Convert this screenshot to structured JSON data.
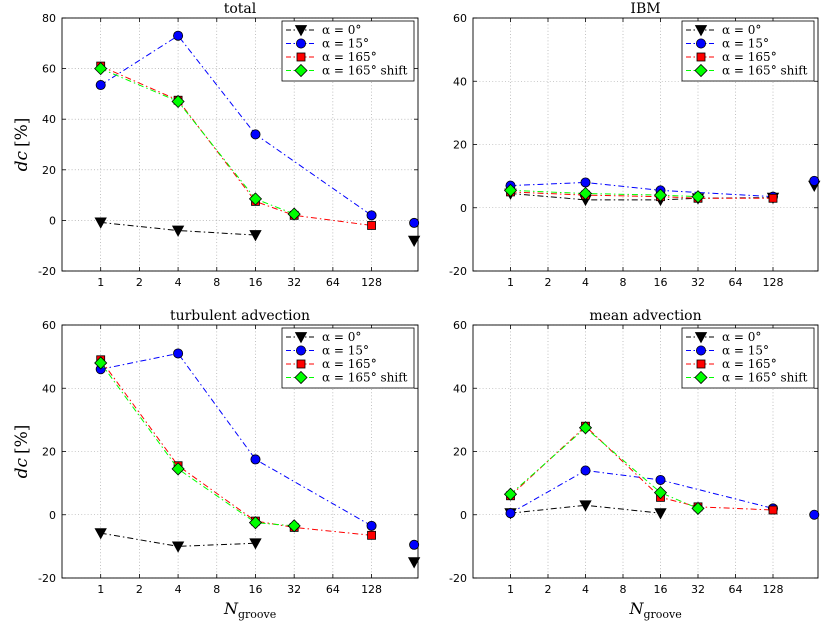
{
  "chart_data": [
    {
      "type": "line",
      "title": "total",
      "ylabel_main": "dc",
      "ylabel_unit": "[%]",
      "xlabel_main": "",
      "xlabel_sub": "",
      "x_tick_labels": [
        "1",
        "2",
        "4",
        "8",
        "16",
        "32",
        "64",
        "128"
      ],
      "y_ticks": [
        -20,
        0,
        20,
        40,
        60,
        80
      ],
      "ylim": [
        -20,
        80
      ],
      "xlim_log2": [
        -1,
        8.2
      ],
      "grid": true,
      "legend_position": "top-right",
      "series": [
        {
          "name": "α = 0°",
          "x": [
            1,
            4,
            16
          ],
          "y": [
            -0.8,
            -4,
            -5.8
          ],
          "extra": {
            "x_log2": 8.1,
            "y": -8
          }
        },
        {
          "name": "α = 15°",
          "x": [
            1,
            4,
            16,
            128
          ],
          "y": [
            53.5,
            73,
            34,
            2
          ],
          "extra": {
            "x_log2": 8.1,
            "y": -1
          }
        },
        {
          "name": "α = 165°",
          "x": [
            1,
            4,
            16,
            32,
            128
          ],
          "y": [
            61,
            47.5,
            7.5,
            2,
            -2
          ]
        },
        {
          "name": "α = 165° shift",
          "x": [
            1,
            4,
            16,
            32
          ],
          "y": [
            60,
            47,
            8.5,
            2.5
          ]
        }
      ]
    },
    {
      "type": "line",
      "title": "IBM",
      "ylabel_main": "",
      "ylabel_unit": "",
      "xlabel_main": "",
      "xlabel_sub": "",
      "x_tick_labels": [
        "1",
        "2",
        "4",
        "8",
        "16",
        "32",
        "64",
        "128"
      ],
      "y_ticks": [
        -20,
        0,
        20,
        40,
        60
      ],
      "ylim": [
        -20,
        60
      ],
      "xlim_log2": [
        -1,
        8.2
      ],
      "grid": true,
      "legend_position": "top-right",
      "series": [
        {
          "name": "α = 0°",
          "x": [
            1,
            4,
            16,
            32,
            128
          ],
          "y": [
            4.5,
            2.5,
            2.5,
            3,
            3.2
          ],
          "extra": {
            "x_log2": 8.1,
            "y": 7
          }
        },
        {
          "name": "α = 15°",
          "x": [
            1,
            4,
            16,
            128
          ],
          "y": [
            7,
            8,
            5.5,
            3.5
          ],
          "extra": {
            "x_log2": 8.1,
            "y": 8.5
          }
        },
        {
          "name": "α = 165°",
          "x": [
            1,
            4,
            16,
            32,
            128
          ],
          "y": [
            5,
            4,
            3.5,
            3,
            3
          ]
        },
        {
          "name": "α = 165° shift",
          "x": [
            1,
            4,
            16,
            32
          ],
          "y": [
            5.5,
            4.5,
            4,
            3.5
          ]
        }
      ]
    },
    {
      "type": "line",
      "title": "turbulent advection",
      "ylabel_main": "dc",
      "ylabel_unit": "[%]",
      "xlabel_main": "N",
      "xlabel_sub": "groove",
      "x_tick_labels": [
        "1",
        "2",
        "4",
        "8",
        "16",
        "32",
        "64",
        "128"
      ],
      "y_ticks": [
        -20,
        0,
        20,
        40,
        60
      ],
      "ylim": [
        -20,
        60
      ],
      "xlim_log2": [
        -1,
        8.2
      ],
      "grid": true,
      "legend_position": "top-right",
      "series": [
        {
          "name": "α = 0°",
          "x": [
            1,
            4,
            16
          ],
          "y": [
            -5.8,
            -10,
            -9
          ],
          "extra": {
            "x_log2": 8.1,
            "y": -15
          }
        },
        {
          "name": "α = 15°",
          "x": [
            1,
            4,
            16,
            128
          ],
          "y": [
            46,
            51,
            17.5,
            -3.5
          ],
          "extra": {
            "x_log2": 8.1,
            "y": -9.5
          }
        },
        {
          "name": "α = 165°",
          "x": [
            1,
            4,
            16,
            32,
            128
          ],
          "y": [
            49,
            15.5,
            -2,
            -4,
            -6.5
          ]
        },
        {
          "name": "α = 165° shift",
          "x": [
            1,
            4,
            16,
            32
          ],
          "y": [
            48,
            14.5,
            -2.5,
            -3.5
          ]
        }
      ]
    },
    {
      "type": "line",
      "title": "mean advection",
      "ylabel_main": "",
      "ylabel_unit": "",
      "xlabel_main": "N",
      "xlabel_sub": "groove",
      "x_tick_labels": [
        "1",
        "2",
        "4",
        "8",
        "16",
        "32",
        "64",
        "128"
      ],
      "y_ticks": [
        -20,
        0,
        20,
        40,
        60
      ],
      "ylim": [
        -20,
        60
      ],
      "xlim_log2": [
        -1,
        8.2
      ],
      "grid": true,
      "legend_position": "top-right",
      "series": [
        {
          "name": "α = 0°",
          "x": [
            1,
            4,
            16
          ],
          "y": [
            0.5,
            3,
            0.5
          ]
        },
        {
          "name": "α = 15°",
          "x": [
            1,
            4,
            16,
            128
          ],
          "y": [
            0.5,
            14,
            11,
            2
          ],
          "extra": {
            "x_log2": 8.1,
            "y": 0
          }
        },
        {
          "name": "α = 165°",
          "x": [
            1,
            4,
            16,
            32,
            128
          ],
          "y": [
            6,
            28,
            5.5,
            2.5,
            1.5
          ]
        },
        {
          "name": "α = 165° shift",
          "x": [
            1,
            4,
            16,
            32
          ],
          "y": [
            6.5,
            27.5,
            7,
            2
          ]
        }
      ]
    }
  ],
  "legend_labels": [
    "α = 0°",
    "α = 15°",
    "α = 165°",
    "α = 165° shift"
  ],
  "style": {
    "colors": [
      "#000000",
      "#0000ff",
      "#ff0000",
      "#00ff00"
    ],
    "markers": [
      "triangle-down",
      "circle",
      "square",
      "diamond"
    ]
  }
}
